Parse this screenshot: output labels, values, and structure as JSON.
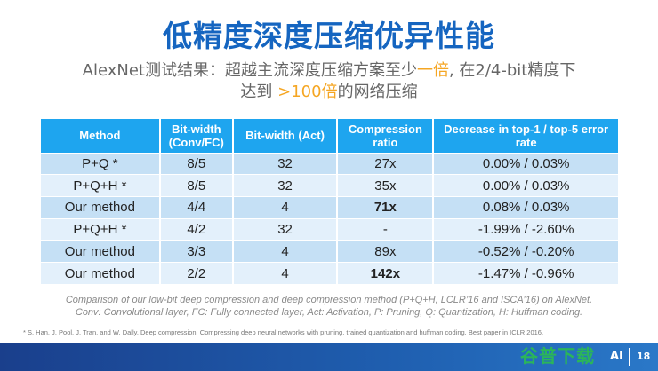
{
  "title": "低精度深度压缩优异性能",
  "subtitle": {
    "line1_a": "AlexNet测试结果：超越主流深度压缩方案至少",
    "line1_hl": "一倍",
    "line1_b": ", 在2/4-bit精度下",
    "line2_a": "达到 ",
    "line2_hl": ">100倍",
    "line2_b": "的网络压缩"
  },
  "table": {
    "headers": [
      "Method",
      "Bit-width (Conv/FC)",
      "Bit-width (Act)",
      "Compression ratio",
      "Decrease in top-1 / top-5 error rate"
    ],
    "rows": [
      [
        "P+Q *",
        "8/5",
        "32",
        "27x",
        "0.00%  / 0.03%"
      ],
      [
        "P+Q+H *",
        "8/5",
        "32",
        "35x",
        "0.00%  / 0.03%"
      ],
      [
        "Our method",
        "4/4",
        "4",
        "71x",
        "0.08%  / 0.03%"
      ],
      [
        "P+Q+H *",
        "4/2",
        "32",
        "-",
        "-1.99%  / -2.60%"
      ],
      [
        "Our method",
        "3/3",
        "4",
        "89x",
        "-0.52%  / -0.20%"
      ],
      [
        "Our method",
        "2/2",
        "4",
        "142x",
        "-1.47%  / -0.96%"
      ]
    ]
  },
  "caption": {
    "line1": "Comparison of our low-bit deep compression and deep compression method (P+Q+H, LCLR’16 and ISCA’16) on AlexNet.",
    "line2": "Conv: Convolutional layer, FC: Fully connected layer, Act: Activation, P: Pruning, Q: Quantization, H: Huffman coding."
  },
  "reference": "* S. Han, J. Pool, J. Tran, and W. Dally. Deep compression: Compressing deep neural networks with pruning, trained quantization and huffman coding. Best paper in ICLR 2016.",
  "footer": {
    "watermark": "谷普下载",
    "brand": "AI",
    "page": "18"
  },
  "colors": {
    "title": "#1565c0",
    "highlight": "#f5a623",
    "header": "#1ea5ef",
    "row_odd": "#c5e0f5",
    "row_even": "#e3f0fb",
    "band": "#1f5fb0"
  }
}
